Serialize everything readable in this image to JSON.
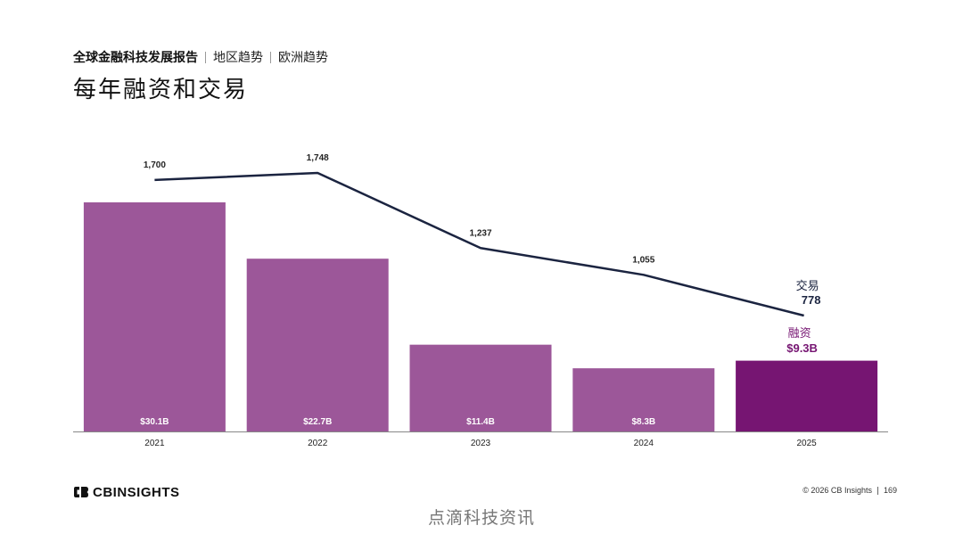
{
  "header": {
    "breadcrumb": [
      "全球金融科技发展报告",
      "地区趋势",
      "欧洲趋势"
    ],
    "title": "每年融资和交易"
  },
  "chart_data": {
    "type": "bar",
    "categories": [
      "2021",
      "2022",
      "2023",
      "2024",
      "2025"
    ],
    "series": [
      {
        "name": "融资",
        "kind": "bar",
        "values": [
          30.1,
          22.7,
          11.4,
          8.3,
          9.3
        ],
        "labels": [
          "$30.1B",
          "$22.7B",
          "$11.4B",
          "$8.3B",
          "$9.3B"
        ],
        "color": "#9c5799",
        "highlight_color": "#761572",
        "highlight_index": 4
      },
      {
        "name": "交易",
        "kind": "line",
        "values": [
          1700,
          1748,
          1237,
          1055,
          778
        ],
        "labels": [
          "1,700",
          "1,748",
          "1,237",
          "1,055",
          "778"
        ],
        "color": "#1b2440"
      }
    ],
    "title": "每年融资和交易",
    "xlabel": "",
    "ylabel": "",
    "grid": false
  },
  "footer": {
    "logo_text": "CBINSIGHTS",
    "copyright": "© 2026 CB Insights",
    "page_number": "169"
  },
  "watermark": "点滴科技资讯",
  "colors": {
    "bar": "#9c5799",
    "bar_highlight": "#761572",
    "line": "#1b2440",
    "funding_label": "#761572"
  }
}
